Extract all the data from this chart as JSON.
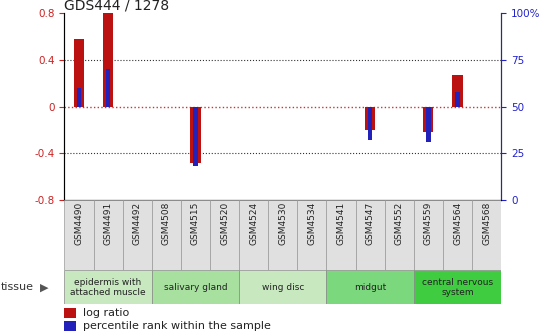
{
  "title": "GDS444 / 1278",
  "samples": [
    "GSM4490",
    "GSM4491",
    "GSM4492",
    "GSM4508",
    "GSM4515",
    "GSM4520",
    "GSM4524",
    "GSM4530",
    "GSM4534",
    "GSM4541",
    "GSM4547",
    "GSM4552",
    "GSM4559",
    "GSM4564",
    "GSM4568"
  ],
  "log_ratio": [
    0.58,
    0.8,
    0.0,
    0.0,
    -0.48,
    0.0,
    0.0,
    0.0,
    0.0,
    0.0,
    -0.2,
    0.0,
    -0.22,
    0.27,
    0.0
  ],
  "percentile": [
    60,
    70,
    50,
    50,
    18,
    50,
    50,
    50,
    50,
    50,
    32,
    50,
    31,
    58,
    50
  ],
  "tissues": [
    {
      "label": "epidermis with\nattached muscle",
      "start": 0,
      "end": 3,
      "color": "#c8e8c0"
    },
    {
      "label": "salivary gland",
      "start": 3,
      "end": 6,
      "color": "#a8e0a0"
    },
    {
      "label": "wing disc",
      "start": 6,
      "end": 9,
      "color": "#c8e8c0"
    },
    {
      "label": "midgut",
      "start": 9,
      "end": 12,
      "color": "#7cd87c"
    },
    {
      "label": "central nervous\nsystem",
      "start": 12,
      "end": 15,
      "color": "#40cc40"
    }
  ],
  "ylim": [
    -0.8,
    0.8
  ],
  "bar_width": 0.35,
  "blue_bar_width": 0.15,
  "log_ratio_color": "#bb1111",
  "percentile_color": "#2222bb",
  "zero_line_color": "#cc3333",
  "grid_color": "#333333",
  "left_tick_color": "#cc2222",
  "right_tick_color": "#2222cc",
  "sample_box_color": "#e0e0e0",
  "sample_box_edge": "#999999"
}
